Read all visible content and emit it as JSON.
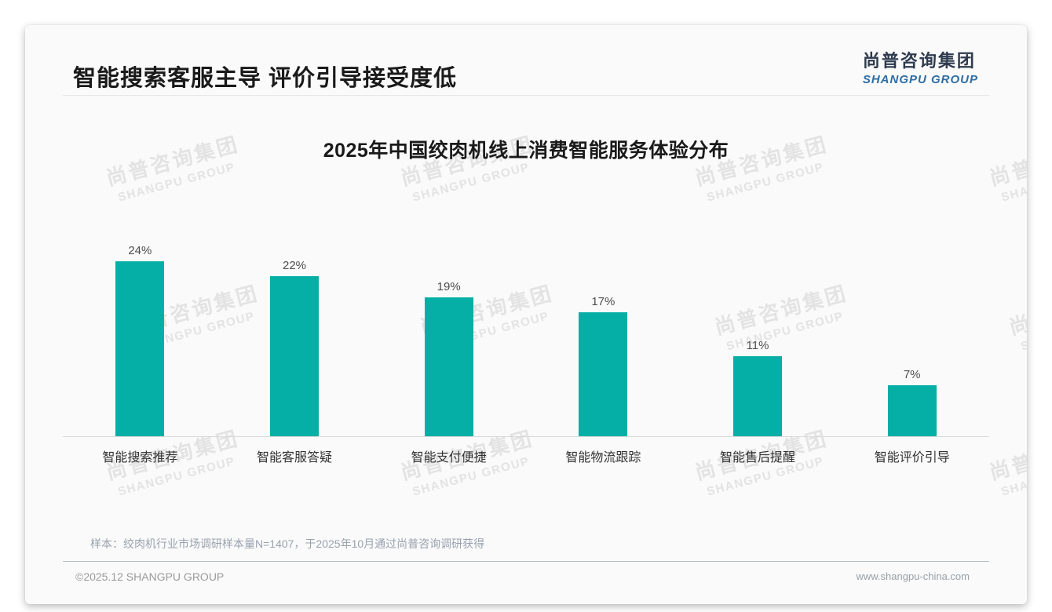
{
  "page_title": "智能搜索客服主导 评价引导接受度低",
  "branding": {
    "logo_cn": "尚普咨询集团",
    "logo_en": "SHANGPU GROUP",
    "logo_cn_color": "#2e3b4e",
    "logo_en_color": "#2e6da4",
    "watermark_cn": "尚普咨询集团",
    "watermark_en": "SHANGPU GROUP"
  },
  "chart_data": {
    "type": "bar",
    "title": "2025年中国绞肉机线上消费智能服务体验分布",
    "categories": [
      "智能搜索推荐",
      "智能客服答疑",
      "智能支付便捷",
      "智能物流跟踪",
      "智能售后提醒",
      "智能评价引导"
    ],
    "values": [
      24,
      22,
      19,
      17,
      11,
      7
    ],
    "value_labels": [
      "24%",
      "22%",
      "19%",
      "17%",
      "11%",
      "7%"
    ],
    "unit": "%",
    "bar_color": "#05afa5",
    "ylim": [
      0,
      26
    ],
    "grid": false,
    "legend": "none",
    "xlabel": "",
    "ylabel": ""
  },
  "footnote": "样本：绞肉机行业市场调研样本量N=1407，于2025年10月通过尚普咨询调研获得",
  "footer": {
    "copyright": "©2025.12 SHANGPU GROUP",
    "website": "www.shangpu-china.com"
  }
}
